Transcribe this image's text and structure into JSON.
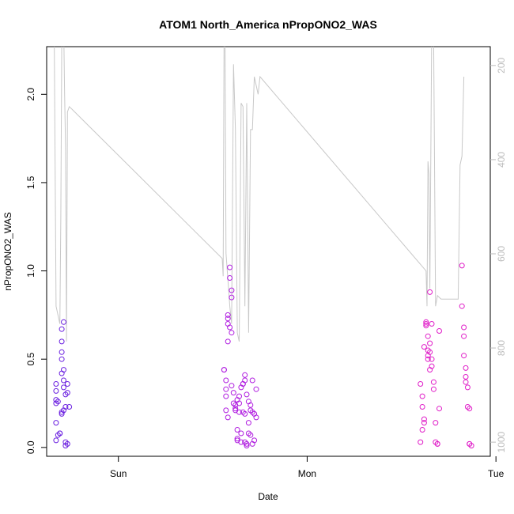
{
  "chart_data": {
    "type": "scatter",
    "title": "ATOM1 North_America nPropONO2_WAS",
    "xlabel": "Date",
    "ylabel": "nPropONO2_WAS",
    "x_ticks": [
      "Sun",
      "Mon",
      "Tue"
    ],
    "y_ticks": [
      "0.0",
      "0.5",
      "1.0",
      "1.5",
      "2.0"
    ],
    "y_right_ticks": [
      "200",
      "400",
      "600",
      "800",
      "1000"
    ],
    "ylim": [
      -0.05,
      2.27
    ],
    "y_right_lim": [
      1030,
      160
    ],
    "xlim": [
      -0.38,
      1.97
    ],
    "grid": false,
    "colors": {
      "early": "#6a1fe0",
      "middle": "#b01ee0",
      "late": "#e01ec8",
      "line": "#c8c8c8",
      "axis": "#000000",
      "right_axis": "#bdbdbd"
    },
    "series": [
      {
        "group": "early",
        "x": [
          -0.33,
          -0.33,
          -0.33,
          -0.32,
          -0.33,
          -0.33,
          -0.32,
          -0.33,
          -0.31,
          -0.31,
          -0.3,
          -0.3,
          -0.3,
          -0.3,
          -0.3,
          -0.29,
          -0.29,
          -0.28,
          -0.28,
          -0.29,
          -0.3,
          -0.3,
          -0.29,
          -0.29,
          -0.28,
          -0.28,
          -0.27,
          -0.27,
          -0.26,
          -0.27
        ],
        "y": [
          0.36,
          0.32,
          0.27,
          0.26,
          0.25,
          0.14,
          0.07,
          0.04,
          0.08,
          0.08,
          0.67,
          0.6,
          0.54,
          0.5,
          0.42,
          0.44,
          0.34,
          0.3,
          0.23,
          0.21,
          0.2,
          0.19,
          0.71,
          0.38,
          0.03,
          0.01,
          0.36,
          0.31,
          0.23,
          0.02
        ]
      },
      {
        "group": "middle",
        "x": [
          0.56,
          0.56,
          0.57,
          0.57,
          0.57,
          0.57,
          0.58,
          0.58,
          0.58,
          0.58,
          0.58,
          0.59,
          0.59,
          0.59,
          0.6,
          0.6,
          0.6,
          0.61,
          0.61,
          0.62,
          0.62,
          0.62,
          0.63,
          0.63,
          0.63,
          0.63,
          0.64,
          0.64,
          0.64,
          0.65,
          0.65,
          0.65,
          0.66,
          0.66,
          0.66,
          0.67,
          0.67,
          0.67,
          0.67,
          0.68,
          0.68,
          0.68,
          0.69,
          0.69,
          0.69,
          0.7,
          0.7,
          0.7,
          0.71,
          0.71,
          0.71,
          0.72,
          0.72,
          0.73,
          0.73,
          0.6
        ],
        "y": [
          0.44,
          0.44,
          0.38,
          0.33,
          0.29,
          0.21,
          0.17,
          0.6,
          0.7,
          0.73,
          0.75,
          0.68,
          1.02,
          0.96,
          0.89,
          0.85,
          0.65,
          0.31,
          0.25,
          0.21,
          0.24,
          0.22,
          0.27,
          0.1,
          0.05,
          0.04,
          0.29,
          0.25,
          0.2,
          0.34,
          0.08,
          0.03,
          0.36,
          0.36,
          0.2,
          0.41,
          0.38,
          0.19,
          0.03,
          0.02,
          0.01,
          0.3,
          0.26,
          0.14,
          0.08,
          0.07,
          0.24,
          0.21,
          0.38,
          0.2,
          0.02,
          0.04,
          0.19,
          0.17,
          0.33,
          0.35
        ]
      },
      {
        "group": "late",
        "x": [
          1.6,
          1.61,
          1.61,
          1.62,
          1.62,
          1.62,
          1.63,
          1.63,
          1.64,
          1.64,
          1.64,
          1.65,
          1.65,
          1.65,
          1.66,
          1.66,
          1.66,
          1.67,
          1.67,
          1.68,
          1.68,
          1.69,
          1.69,
          1.7,
          1.7,
          1.82,
          1.82,
          1.83,
          1.83,
          1.83,
          1.84,
          1.84,
          1.84,
          1.85,
          1.85,
          1.86,
          1.86,
          1.87,
          1.86,
          1.6,
          1.61,
          1.63,
          1.64,
          1.65
        ],
        "y": [
          0.36,
          0.29,
          0.23,
          0.16,
          0.14,
          0.57,
          0.71,
          0.69,
          0.63,
          0.55,
          0.52,
          0.88,
          0.59,
          0.44,
          0.7,
          0.5,
          0.46,
          0.33,
          0.37,
          0.14,
          0.03,
          0.02,
          0.02,
          0.22,
          0.66,
          0.8,
          1.03,
          0.68,
          0.63,
          0.52,
          0.45,
          0.4,
          0.37,
          0.34,
          0.23,
          0.22,
          0.02,
          0.01,
          0.02,
          0.03,
          0.1,
          0.7,
          0.5,
          0.54
        ]
      }
    ],
    "line_series": {
      "x": [
        -0.34,
        -0.33,
        -0.32,
        -0.31,
        -0.305,
        -0.3,
        -0.29,
        -0.285,
        -0.28,
        -0.275,
        -0.27,
        -0.26,
        -0.25,
        0.55,
        0.555,
        0.56,
        0.565,
        0.57,
        0.58,
        0.59,
        0.6,
        0.61,
        0.62,
        0.63,
        0.64,
        0.65,
        0.66,
        0.67,
        0.68,
        0.69,
        0.7,
        0.71,
        0.72,
        0.73,
        0.74,
        0.75,
        1.63,
        1.635,
        1.64,
        1.645,
        1.65,
        1.66,
        1.67,
        1.68,
        1.69,
        1.7,
        1.71,
        1.8,
        1.81,
        1.82,
        1.83
      ],
      "y": [
        2.4,
        0.8,
        0.75,
        0.7,
        1.3,
        2.3,
        2.4,
        2.0,
        1.7,
        0.6,
        1.9,
        1.93,
        1.92,
        1.07,
        0.97,
        2.4,
        2.3,
        1.1,
        0.95,
        0.8,
        0.7,
        2.17,
        1.8,
        0.65,
        0.6,
        1.95,
        1.93,
        0.8,
        1.95,
        0.65,
        1.8,
        1.8,
        2.1,
        2.05,
        2.0,
        2.1,
        1.0,
        0.8,
        1.62,
        1.55,
        0.9,
        2.4,
        2.3,
        0.8,
        0.86,
        0.85,
        0.84,
        0.84,
        1.6,
        1.65,
        2.1
      ]
    }
  }
}
